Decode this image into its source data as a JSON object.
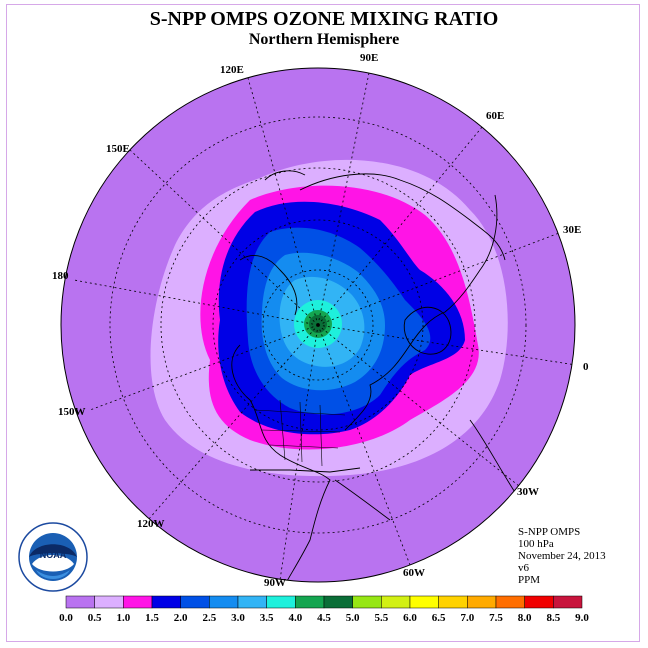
{
  "title": "S-NPP OMPS OZONE MIXING RATIO",
  "subtitle": "Northern Hemisphere",
  "longitude_labels": [
    {
      "id": "lon-90e",
      "text": "90E"
    },
    {
      "id": "lon-60e",
      "text": "60E"
    },
    {
      "id": "lon-30e",
      "text": "30E"
    },
    {
      "id": "lon-0",
      "text": "0"
    },
    {
      "id": "lon-30w",
      "text": "30W"
    },
    {
      "id": "lon-60w",
      "text": "60W"
    },
    {
      "id": "lon-90w",
      "text": "90W"
    },
    {
      "id": "lon-120w",
      "text": "120W"
    },
    {
      "id": "lon-150w",
      "text": "150W"
    },
    {
      "id": "lon-180",
      "text": "180"
    },
    {
      "id": "lon-150e",
      "text": "150E"
    },
    {
      "id": "lon-120e",
      "text": "120E"
    }
  ],
  "info": {
    "instrument": "S-NPP OMPS",
    "level": "100 hPa",
    "date": "November 24, 2013",
    "version": "v6",
    "units": "PPM"
  },
  "colorbar": {
    "ticks": [
      "0.0",
      "0.5",
      "1.0",
      "1.5",
      "2.0",
      "2.5",
      "3.0",
      "3.5",
      "4.0",
      "4.5",
      "5.0",
      "5.5",
      "6.0",
      "6.5",
      "7.0",
      "7.5",
      "8.0",
      "8.5",
      "9.0"
    ],
    "colors": [
      "#b973f0",
      "#dcafff",
      "#ff14e6",
      "#0000e6",
      "#0050e6",
      "#148cf0",
      "#32b4f5",
      "#1ef0dc",
      "#14a550",
      "#0a6e37",
      "#96e614",
      "#d2f014",
      "#ffff00",
      "#ffd200",
      "#ffaa00",
      "#ff6e00",
      "#f00000",
      "#c8143c",
      "#784b32"
    ]
  },
  "logo": {
    "text": "NOAA",
    "icon": "noaa-logo-icon"
  }
}
